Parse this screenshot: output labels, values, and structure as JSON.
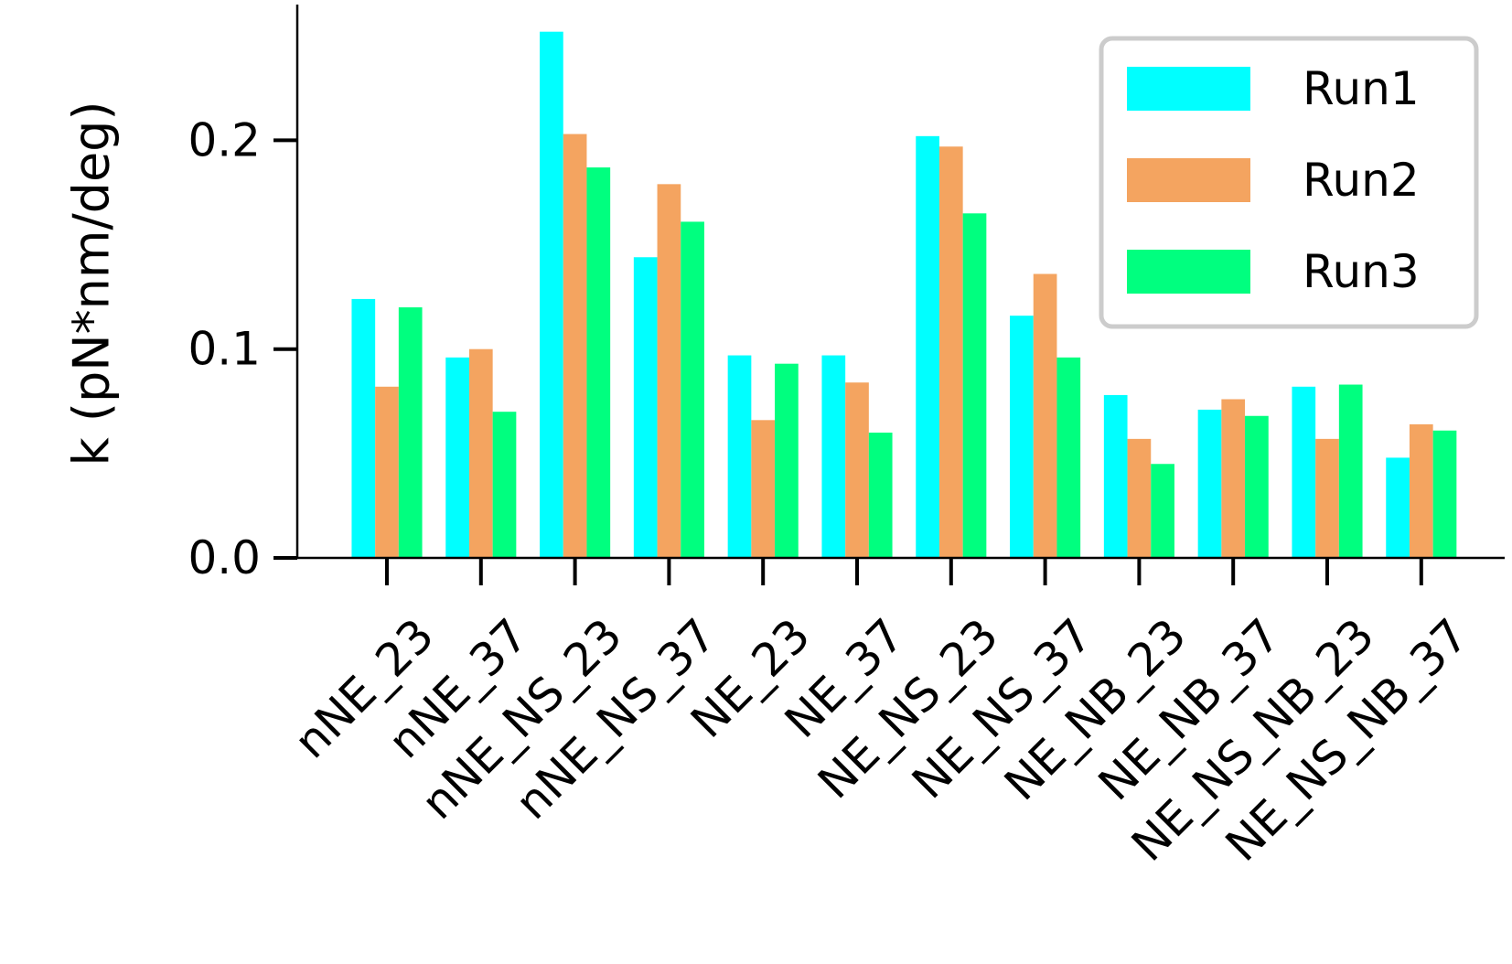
{
  "chart_data": {
    "type": "bar",
    "title": "",
    "xlabel": "",
    "ylabel": "k (pN*nm/deg)",
    "ylim": [
      0,
      0.265
    ],
    "yticks": [
      0.0,
      0.1,
      0.2
    ],
    "ytick_labels": [
      "0.0",
      "0.1",
      "0.2"
    ],
    "grid": false,
    "legend_position": "top-right",
    "categories": [
      "nNE_23",
      "nNE_37",
      "nNE_NS_23",
      "nNE_NS_37",
      "NE_23",
      "NE_37",
      "NE_NS_23",
      "NE_NS_37",
      "NE_NB_23",
      "NE_NB_37",
      "NE_NS_NB_23",
      "NE_NS_NB_37"
    ],
    "series": [
      {
        "name": "Run1",
        "color": "#00ffff",
        "values": [
          0.124,
          0.096,
          0.252,
          0.144,
          0.097,
          0.097,
          0.202,
          0.116,
          0.078,
          0.071,
          0.082,
          0.048
        ]
      },
      {
        "name": "Run2",
        "color": "#f4a460",
        "values": [
          0.082,
          0.1,
          0.203,
          0.179,
          0.066,
          0.084,
          0.197,
          0.136,
          0.057,
          0.076,
          0.057,
          0.064
        ]
      },
      {
        "name": "Run3",
        "color": "#00ff7f",
        "values": [
          0.12,
          0.07,
          0.187,
          0.161,
          0.093,
          0.06,
          0.165,
          0.096,
          0.045,
          0.068,
          0.083,
          0.061
        ]
      }
    ]
  }
}
